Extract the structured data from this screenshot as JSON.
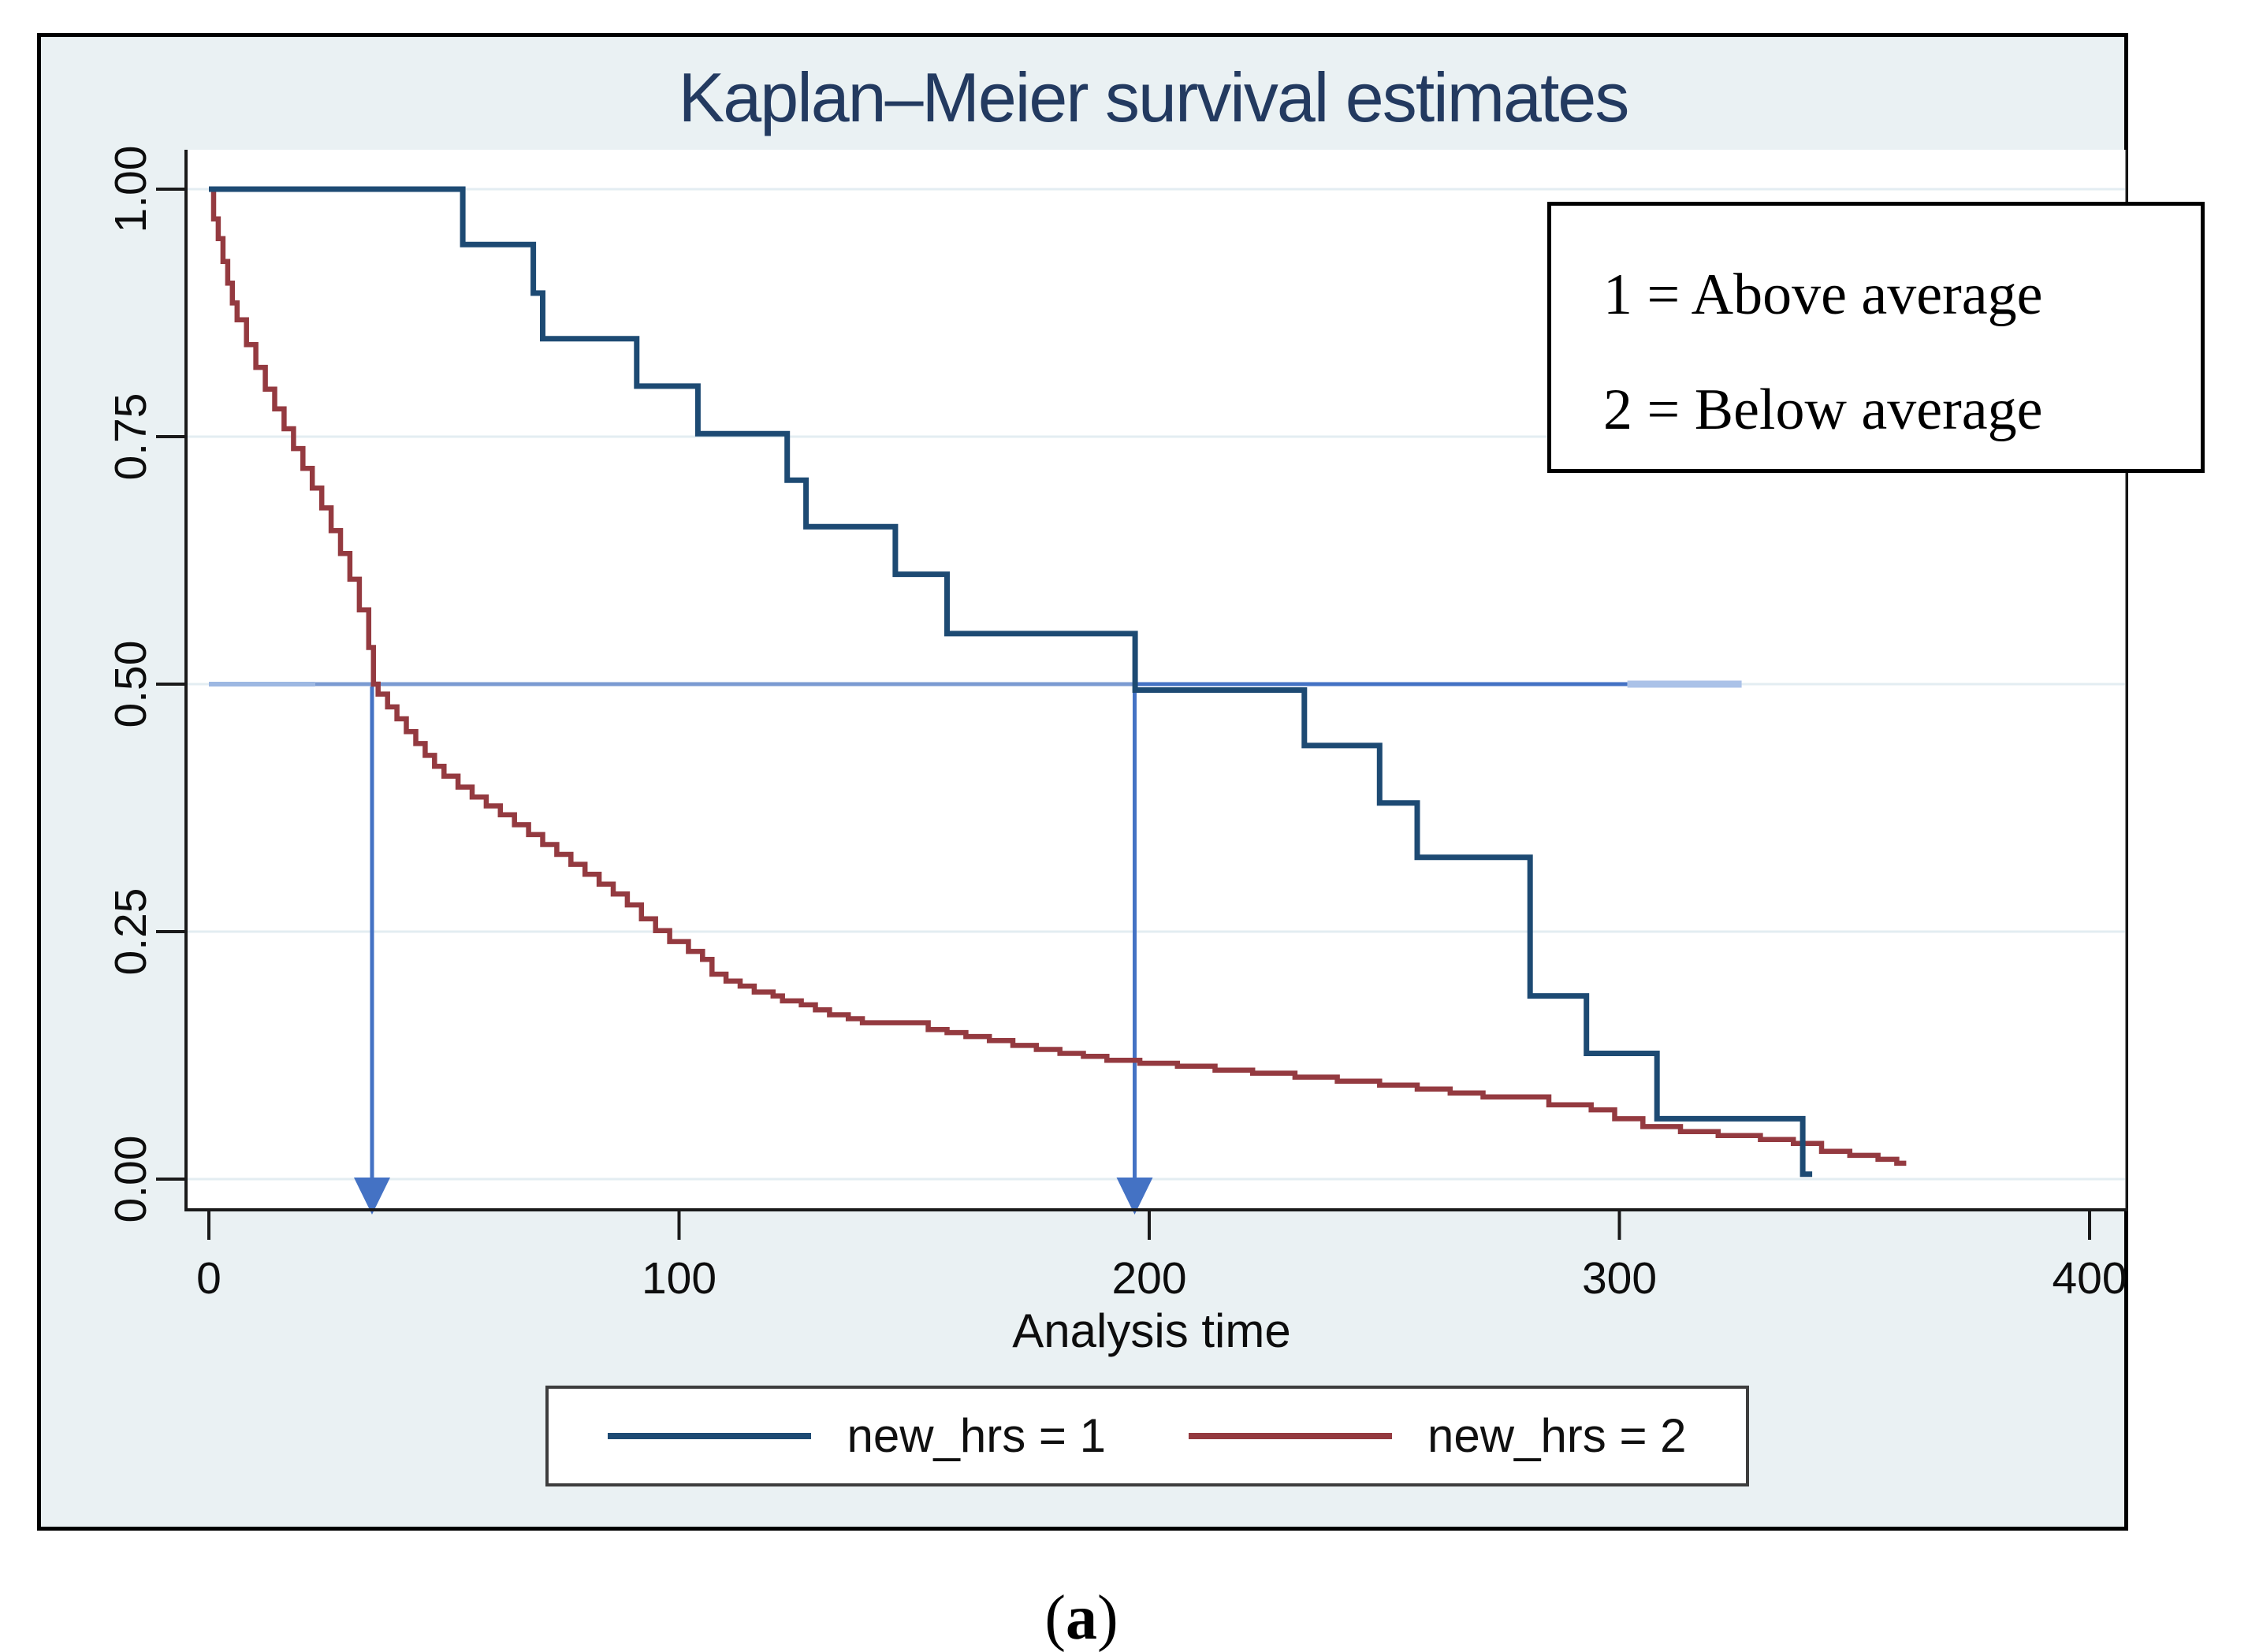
{
  "figure": {
    "title": "Kaplan–Meier survival estimates",
    "caption": {
      "open": "(",
      "letter": "a",
      "close": ")"
    },
    "background_color": "#eaf1f3",
    "plot_background_color": "#ffffff",
    "title_color": "#233a60",
    "annotation_box": {
      "lines": [
        "1 = Above average",
        "2 = Below average"
      ]
    },
    "legend": {
      "entries": [
        {
          "label": "new_hrs = 1",
          "color": "#1d4a73"
        },
        {
          "label": "new_hrs = 2",
          "color": "#943a40"
        }
      ]
    }
  },
  "chart_data": {
    "type": "line",
    "subtype": "kaplan-meier-step",
    "title": "Kaplan–Meier survival estimates",
    "xlabel": "Analysis time",
    "ylabel": "",
    "xlim": [
      0,
      400
    ],
    "ylim": [
      0,
      1
    ],
    "xticks": [
      {
        "v": 0,
        "label": "0"
      },
      {
        "v": 100,
        "label": "100"
      },
      {
        "v": 200,
        "label": "200"
      },
      {
        "v": 300,
        "label": "300"
      },
      {
        "v": 400,
        "label": "400"
      }
    ],
    "yticks": [
      {
        "v": 0,
        "label": "0.00"
      },
      {
        "v": 0.25,
        "label": "0.25"
      },
      {
        "v": 0.5,
        "label": "0.50"
      },
      {
        "v": 0.75,
        "label": "0.75"
      },
      {
        "v": 1,
        "label": "1.00"
      }
    ],
    "grid": true,
    "gridline_color": "#e3edf2",
    "legend_position": "bottom",
    "series": [
      {
        "name": "new_hrs = 1",
        "color": "#1d4a73",
        "step": true,
        "points": [
          [
            0,
            1.0
          ],
          [
            54,
            0.944
          ],
          [
            69,
            0.895
          ],
          [
            71,
            0.849
          ],
          [
            91,
            0.801
          ],
          [
            104,
            0.753
          ],
          [
            123,
            0.706
          ],
          [
            127,
            0.659
          ],
          [
            146,
            0.611
          ],
          [
            157,
            0.551
          ],
          [
            197,
            0.494
          ],
          [
            233,
            0.438
          ],
          [
            249,
            0.38
          ],
          [
            257,
            0.325
          ],
          [
            281,
            0.185
          ],
          [
            293,
            0.127
          ],
          [
            308,
            0.061
          ],
          [
            339,
            0.005
          ],
          [
            341,
            0.005
          ]
        ]
      },
      {
        "name": "new_hrs = 2",
        "color": "#943a40",
        "step": true,
        "points": [
          [
            0,
            1.0
          ],
          [
            1,
            0.97
          ],
          [
            2,
            0.95
          ],
          [
            3,
            0.927
          ],
          [
            4,
            0.905
          ],
          [
            5,
            0.885
          ],
          [
            6,
            0.868
          ],
          [
            8,
            0.843
          ],
          [
            10,
            0.82
          ],
          [
            12,
            0.798
          ],
          [
            14,
            0.778
          ],
          [
            16,
            0.758
          ],
          [
            18,
            0.738
          ],
          [
            20,
            0.718
          ],
          [
            22,
            0.698
          ],
          [
            24,
            0.678
          ],
          [
            26,
            0.655
          ],
          [
            28,
            0.632
          ],
          [
            30,
            0.606
          ],
          [
            32,
            0.575
          ],
          [
            34,
            0.537
          ],
          [
            35,
            0.5
          ],
          [
            36,
            0.49
          ],
          [
            38,
            0.477
          ],
          [
            40,
            0.465
          ],
          [
            42,
            0.452
          ],
          [
            44,
            0.44
          ],
          [
            46,
            0.428
          ],
          [
            48,
            0.417
          ],
          [
            50,
            0.407
          ],
          [
            53,
            0.396
          ],
          [
            56,
            0.386
          ],
          [
            59,
            0.377
          ],
          [
            62,
            0.368
          ],
          [
            65,
            0.358
          ],
          [
            68,
            0.348
          ],
          [
            71,
            0.338
          ],
          [
            74,
            0.328
          ],
          [
            77,
            0.318
          ],
          [
            80,
            0.308
          ],
          [
            83,
            0.298
          ],
          [
            86,
            0.288
          ],
          [
            89,
            0.277
          ],
          [
            92,
            0.263
          ],
          [
            95,
            0.251
          ],
          [
            98,
            0.24
          ],
          [
            102,
            0.23
          ],
          [
            105,
            0.222
          ],
          [
            107,
            0.207
          ],
          [
            110,
            0.2
          ],
          [
            113,
            0.195
          ],
          [
            116,
            0.189
          ],
          [
            120,
            0.185
          ],
          [
            122,
            0.18
          ],
          [
            126,
            0.176
          ],
          [
            129,
            0.171
          ],
          [
            132,
            0.166
          ],
          [
            136,
            0.162
          ],
          [
            139,
            0.158
          ],
          [
            153,
            0.151
          ],
          [
            157,
            0.148
          ],
          [
            161,
            0.144
          ],
          [
            166,
            0.14
          ],
          [
            171,
            0.135
          ],
          [
            176,
            0.131
          ],
          [
            181,
            0.127
          ],
          [
            186,
            0.124
          ],
          [
            191,
            0.12
          ],
          [
            198,
            0.117
          ],
          [
            206,
            0.114
          ],
          [
            214,
            0.11
          ],
          [
            222,
            0.107
          ],
          [
            231,
            0.103
          ],
          [
            240,
            0.099
          ],
          [
            249,
            0.095
          ],
          [
            257,
            0.091
          ],
          [
            264,
            0.087
          ],
          [
            271,
            0.083
          ],
          [
            285,
            0.075
          ],
          [
            294,
            0.07
          ],
          [
            299,
            0.061
          ],
          [
            305,
            0.053
          ],
          [
            313,
            0.048
          ],
          [
            321,
            0.044
          ],
          [
            330,
            0.04
          ],
          [
            337,
            0.036
          ],
          [
            343,
            0.028
          ],
          [
            349,
            0.024
          ],
          [
            355,
            0.02
          ],
          [
            359,
            0.016
          ],
          [
            361,
            0.016
          ]
        ]
      }
    ],
    "reference_line": {
      "y": 0.5,
      "segments": [
        {
          "from_x": 0,
          "to_x": 22.6,
          "color": "#9db8e2",
          "width": 6
        },
        {
          "from_x": 22.6,
          "to_x": 196.5,
          "color": "#7b9bd2",
          "width": 5
        },
        {
          "from_x": 196.5,
          "to_x": 301.7,
          "color": "#4472c4",
          "width": 5
        },
        {
          "from_x": 301.7,
          "to_x": 326.0,
          "color": "#abc2e8",
          "width": 9
        }
      ]
    },
    "median_arrows": [
      {
        "x": 34.7,
        "from_y": 0.5,
        "color": "#4472c4"
      },
      {
        "x": 196.9,
        "from_y": 0.5,
        "color": "#4472c4"
      }
    ]
  }
}
